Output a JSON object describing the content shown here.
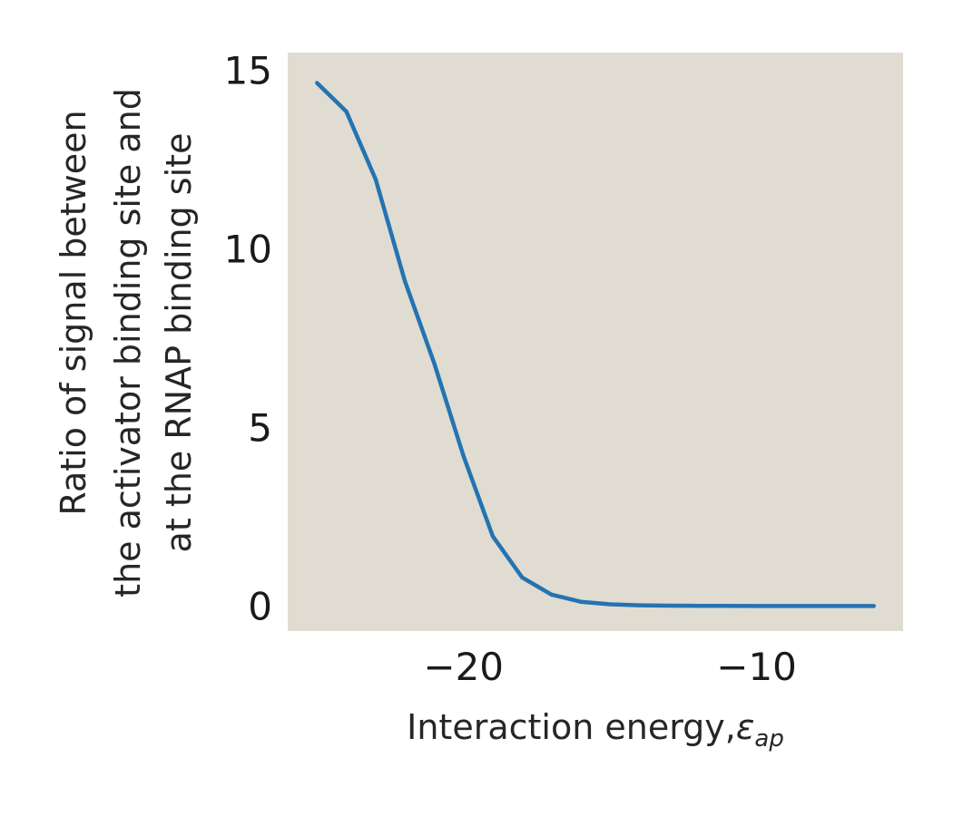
{
  "chart_data": {
    "type": "line",
    "title": "",
    "xlabel": "Interaction energy,",
    "xlabel_symbol": "ε",
    "xlabel_subscript": "ap",
    "ylabel_lines": [
      "Ratio of signal between",
      "the activator binding site and",
      "at the RNAP binding site"
    ],
    "xlim": [
      -26.0,
      -5.0
    ],
    "ylim": [
      -0.7,
      15.5
    ],
    "xticks": [
      -20,
      -10
    ],
    "xtick_labels": [
      "−20",
      "−10"
    ],
    "yticks": [
      0,
      5,
      10,
      15
    ],
    "ytick_labels": [
      "0",
      "5",
      "10",
      "15"
    ],
    "grid": false,
    "legend": "none",
    "colors": {
      "plot_background": "#e1dcd1",
      "line": "#2473b2"
    },
    "series": [
      {
        "x": [
          -25,
          -24,
          -23,
          -22,
          -21,
          -20,
          -19,
          -18,
          -17,
          -16,
          -15,
          -14,
          -13,
          -12,
          -11,
          -10,
          -9,
          -8,
          -7,
          -6
        ],
        "y": [
          14.65,
          13.85,
          11.95,
          9.1,
          6.8,
          4.2,
          1.95,
          0.8,
          0.32,
          0.12,
          0.05,
          0.02,
          0.01,
          0.005,
          0.003,
          0.002,
          0.001,
          0.001,
          0.0,
          0.0
        ]
      }
    ]
  }
}
